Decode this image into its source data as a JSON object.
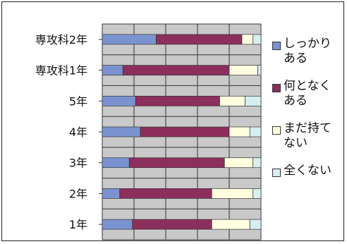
{
  "chart_data": {
    "type": "bar",
    "stacked": true,
    "orientation": "horizontal",
    "normalized": true,
    "categories": [
      "専攻科2年",
      "専攻科1年",
      "5年",
      "4年",
      "3年",
      "2年",
      "1年"
    ],
    "series": [
      {
        "name": "しっかりある",
        "color": "#7a93d0",
        "values": [
          34,
          13,
          21,
          24,
          17,
          11,
          19
        ]
      },
      {
        "name": "何となくある",
        "color": "#8c2f5c",
        "values": [
          54,
          67,
          53,
          56,
          60,
          58,
          50
        ]
      },
      {
        "name": "まだ持てない",
        "color": "#ffffe0",
        "values": [
          7,
          18,
          16,
          13,
          18,
          26,
          24
        ]
      },
      {
        "name": "全くない",
        "color": "#d6eef2",
        "values": [
          5,
          2,
          10,
          7,
          5,
          5,
          7
        ]
      }
    ],
    "xlim": [
      0,
      100
    ],
    "grid": true,
    "legend_position": "right",
    "title": "",
    "xlabel": "",
    "ylabel": ""
  }
}
